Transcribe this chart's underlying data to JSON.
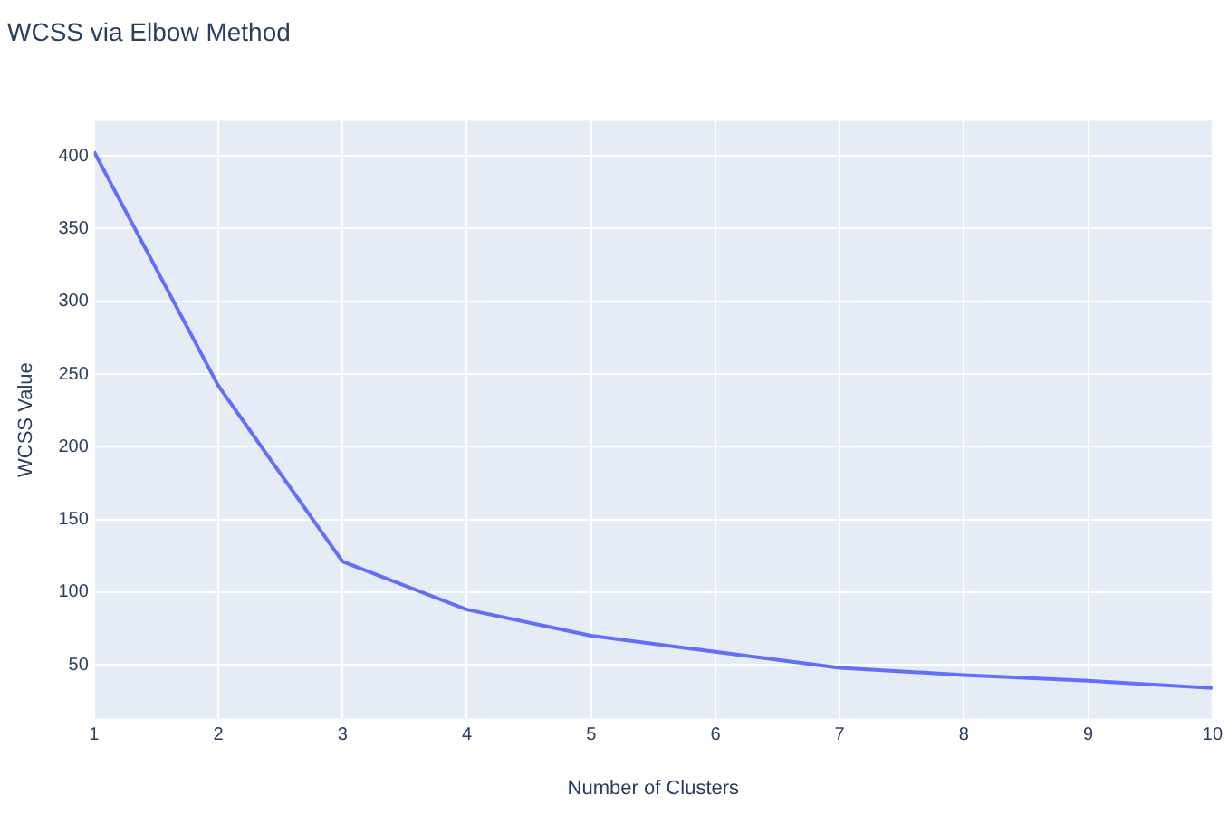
{
  "chart_data": {
    "type": "line",
    "title": "WCSS via Elbow Method",
    "xlabel": "Number of Clusters",
    "ylabel": "WCSS Value",
    "x": [
      1,
      2,
      3,
      4,
      5,
      6,
      7,
      8,
      9,
      10
    ],
    "series": [
      {
        "color": "#636efa",
        "values": [
          403,
          242,
          121,
          88,
          70,
          59,
          48,
          43,
          39,
          34
        ]
      }
    ],
    "xlim": [
      1,
      10
    ],
    "xticks": [
      1,
      2,
      3,
      4,
      5,
      6,
      7,
      8,
      9,
      10
    ],
    "ylim": [
      13,
      424
    ],
    "yticks": [
      50,
      100,
      150,
      200,
      250,
      300,
      350,
      400
    ],
    "grid": true,
    "legend": false,
    "marker": "none",
    "line_style": "solid"
  }
}
